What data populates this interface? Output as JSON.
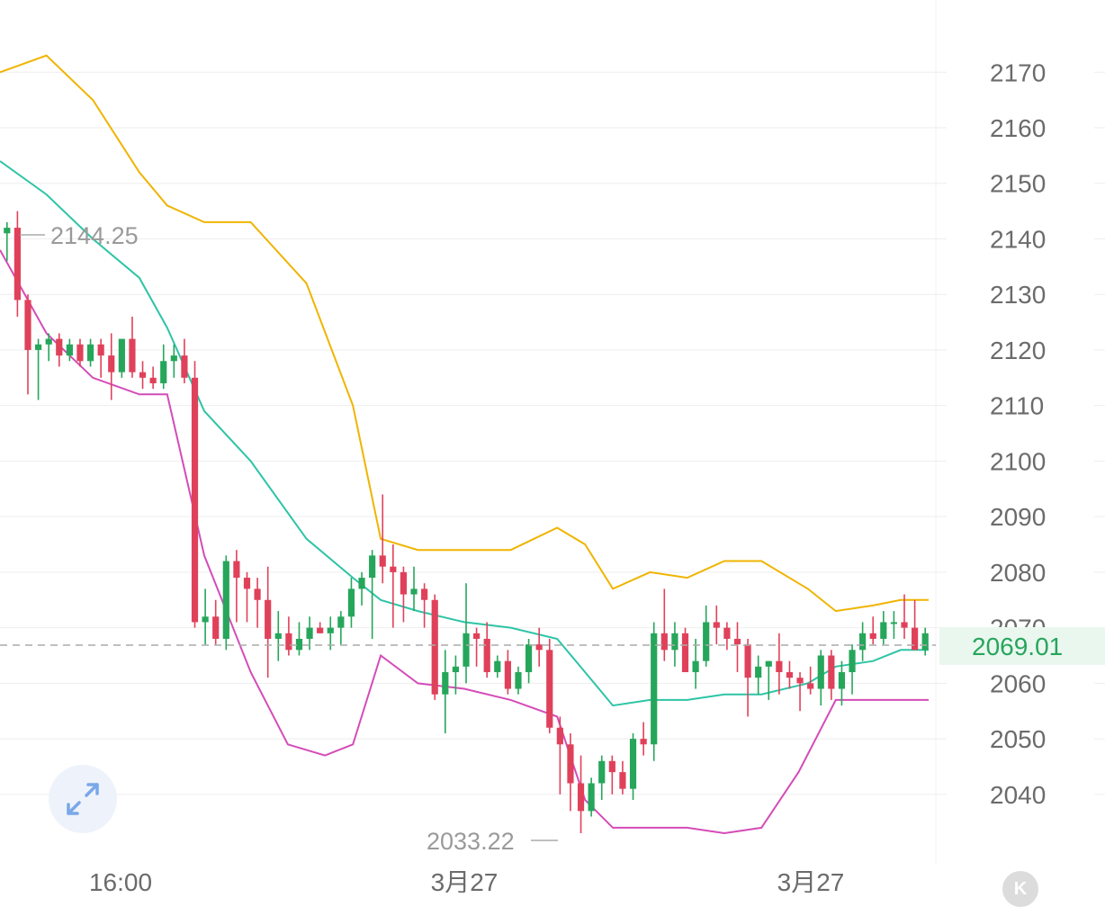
{
  "chart_data": {
    "type": "candlestick",
    "indicator": "bollinger",
    "colors": {
      "up": "#26a65b",
      "down": "#e0415a",
      "upper_band": "#f0b400",
      "middle_band": "#2ec4a6",
      "lower_band": "#d44cb8",
      "last_price": "#26a65b",
      "grid": "#eeeeee"
    },
    "y_ticks": [
      "2170",
      "2160",
      "2150",
      "2140",
      "2130",
      "2120",
      "2110",
      "2100",
      "2090",
      "2080",
      "2070",
      "2060",
      "2050",
      "2040"
    ],
    "x_ticks": [
      "16:00",
      "3月27",
      "3月27"
    ],
    "ylim": [
      2027.5,
      2183
    ],
    "last_price": "2069.01",
    "max_annotation": "2144.25",
    "min_annotation": "2033.22",
    "candles": [
      [
        2141,
        2143,
        2136,
        2142
      ],
      [
        2142,
        2145,
        2126,
        2129
      ],
      [
        2129,
        2130,
        2112,
        2120
      ],
      [
        2120,
        2122,
        2111,
        2121
      ],
      [
        2121,
        2123,
        2118,
        2122
      ],
      [
        2122,
        2123,
        2117,
        2119
      ],
      [
        2119,
        2122,
        2118,
        2121
      ],
      [
        2121,
        2122,
        2117,
        2118
      ],
      [
        2118,
        2122,
        2117,
        2121
      ],
      [
        2121,
        2122,
        2115,
        2119
      ],
      [
        2119,
        2123,
        2111,
        2116
      ],
      [
        2116,
        2122,
        2115,
        2122
      ],
      [
        2122,
        2126,
        2115,
        2116
      ],
      [
        2116,
        2118,
        2113,
        2115
      ],
      [
        2115,
        2117,
        2113,
        2114
      ],
      [
        2114,
        2121,
        2113,
        2118
      ],
      [
        2118,
        2121,
        2115,
        2119
      ],
      [
        2119,
        2122,
        2114,
        2115
      ],
      [
        2115,
        2118,
        2070,
        2071
      ],
      [
        2071,
        2077,
        2067,
        2072
      ],
      [
        2072,
        2075,
        2067,
        2068
      ],
      [
        2068,
        2083,
        2066,
        2082
      ],
      [
        2082,
        2084,
        2071,
        2079
      ],
      [
        2079,
        2080,
        2071,
        2077
      ],
      [
        2077,
        2079,
        2070,
        2075
      ],
      [
        2075,
        2081,
        2061,
        2068
      ],
      [
        2068,
        2073,
        2064,
        2069
      ],
      [
        2069,
        2072,
        2065,
        2066
      ],
      [
        2066,
        2071,
        2065,
        2068
      ],
      [
        2068,
        2072,
        2066,
        2070
      ],
      [
        2070,
        2071,
        2069,
        2069
      ],
      [
        2069,
        2072,
        2066,
        2070
      ],
      [
        2070,
        2073,
        2067,
        2072
      ],
      [
        2072,
        2079,
        2070,
        2077
      ],
      [
        2077,
        2080,
        2074,
        2079
      ],
      [
        2079,
        2084,
        2068,
        2083
      ],
      [
        2083,
        2094,
        2078,
        2081
      ],
      [
        2081,
        2085,
        2070,
        2080
      ],
      [
        2080,
        2081,
        2071,
        2076
      ],
      [
        2076,
        2081,
        2073,
        2077
      ],
      [
        2077,
        2078,
        2070,
        2075
      ],
      [
        2075,
        2076,
        2057,
        2058
      ],
      [
        2058,
        2066,
        2051,
        2062
      ],
      [
        2062,
        2065,
        2058,
        2063
      ],
      [
        2063,
        2078,
        2060,
        2069
      ],
      [
        2069,
        2070,
        2063,
        2068
      ],
      [
        2068,
        2071,
        2061,
        2062
      ],
      [
        2062,
        2065,
        2061,
        2064
      ],
      [
        2064,
        2066,
        2058,
        2059
      ],
      [
        2059,
        2063,
        2058,
        2062
      ],
      [
        2062,
        2068,
        2060,
        2067
      ],
      [
        2067,
        2070,
        2063,
        2066
      ],
      [
        2066,
        2068,
        2051,
        2052
      ],
      [
        2052,
        2054,
        2040,
        2049
      ],
      [
        2049,
        2051,
        2037,
        2042
      ],
      [
        2042,
        2047,
        2033,
        2037
      ],
      [
        2037,
        2043,
        2036,
        2042
      ],
      [
        2042,
        2047,
        2039,
        2046
      ],
      [
        2046,
        2047,
        2040,
        2044
      ],
      [
        2044,
        2046,
        2040,
        2041
      ],
      [
        2041,
        2051,
        2039,
        2050
      ],
      [
        2050,
        2053,
        2047,
        2049
      ],
      [
        2049,
        2071,
        2046,
        2069
      ],
      [
        2069,
        2077,
        2064,
        2066
      ],
      [
        2066,
        2071,
        2063,
        2069
      ],
      [
        2069,
        2070,
        2062,
        2062
      ],
      [
        2062,
        2068,
        2059,
        2064
      ],
      [
        2064,
        2074,
        2063,
        2071
      ],
      [
        2071,
        2074,
        2067,
        2070
      ],
      [
        2070,
        2071,
        2066,
        2068
      ],
      [
        2068,
        2071,
        2062,
        2067
      ],
      [
        2067,
        2068,
        2054,
        2061
      ],
      [
        2061,
        2065,
        2058,
        2063
      ],
      [
        2063,
        2064,
        2057,
        2064
      ],
      [
        2064,
        2069,
        2058,
        2062
      ],
      [
        2062,
        2064,
        2059,
        2061
      ],
      [
        2061,
        2062,
        2055,
        2060
      ],
      [
        2060,
        2063,
        2058,
        2059
      ],
      [
        2059,
        2066,
        2056,
        2065
      ],
      [
        2065,
        2066,
        2057,
        2059
      ],
      [
        2059,
        2064,
        2056,
        2062
      ],
      [
        2062,
        2067,
        2058,
        2066
      ],
      [
        2066,
        2071,
        2064,
        2069
      ],
      [
        2069,
        2072,
        2067,
        2068
      ],
      [
        2068,
        2073,
        2067,
        2071
      ],
      [
        2071,
        2073,
        2068,
        2071
      ],
      [
        2071,
        2076,
        2068,
        2070
      ],
      [
        2070,
        2075,
        2067,
        2066
      ],
      [
        2066,
        2070,
        2065,
        2069
      ]
    ],
    "upper_band": [
      [
        0,
        2170
      ],
      [
        0.05,
        2173
      ],
      [
        0.1,
        2165
      ],
      [
        0.15,
        2152
      ],
      [
        0.18,
        2146
      ],
      [
        0.22,
        2143
      ],
      [
        0.27,
        2143
      ],
      [
        0.33,
        2132
      ],
      [
        0.38,
        2110
      ],
      [
        0.41,
        2086
      ],
      [
        0.45,
        2084
      ],
      [
        0.5,
        2084
      ],
      [
        0.55,
        2084
      ],
      [
        0.6,
        2088
      ],
      [
        0.63,
        2085
      ],
      [
        0.66,
        2077
      ],
      [
        0.7,
        2080
      ],
      [
        0.74,
        2079
      ],
      [
        0.78,
        2082
      ],
      [
        0.82,
        2082
      ],
      [
        0.87,
        2077
      ],
      [
        0.9,
        2073
      ],
      [
        0.94,
        2074
      ],
      [
        0.97,
        2075
      ],
      [
        1,
        2075
      ]
    ],
    "middle_band": [
      [
        0,
        2154
      ],
      [
        0.05,
        2148
      ],
      [
        0.1,
        2140
      ],
      [
        0.15,
        2133
      ],
      [
        0.18,
        2124
      ],
      [
        0.22,
        2109
      ],
      [
        0.27,
        2100
      ],
      [
        0.33,
        2086
      ],
      [
        0.38,
        2079
      ],
      [
        0.41,
        2075
      ],
      [
        0.45,
        2073
      ],
      [
        0.5,
        2071
      ],
      [
        0.55,
        2070
      ],
      [
        0.6,
        2068
      ],
      [
        0.63,
        2062
      ],
      [
        0.66,
        2056
      ],
      [
        0.7,
        2057
      ],
      [
        0.74,
        2057
      ],
      [
        0.78,
        2058
      ],
      [
        0.82,
        2058
      ],
      [
        0.87,
        2060
      ],
      [
        0.9,
        2063
      ],
      [
        0.94,
        2064
      ],
      [
        0.97,
        2066
      ],
      [
        1,
        2066
      ]
    ],
    "lower_band": [
      [
        0,
        2138
      ],
      [
        0.05,
        2123
      ],
      [
        0.1,
        2115
      ],
      [
        0.15,
        2112
      ],
      [
        0.18,
        2112
      ],
      [
        0.22,
        2083
      ],
      [
        0.27,
        2062
      ],
      [
        0.31,
        2049
      ],
      [
        0.35,
        2047
      ],
      [
        0.38,
        2049
      ],
      [
        0.41,
        2065
      ],
      [
        0.45,
        2060
      ],
      [
        0.5,
        2059
      ],
      [
        0.55,
        2057
      ],
      [
        0.6,
        2054
      ],
      [
        0.63,
        2039
      ],
      [
        0.66,
        2034
      ],
      [
        0.7,
        2034
      ],
      [
        0.74,
        2034
      ],
      [
        0.78,
        2033
      ],
      [
        0.82,
        2034
      ],
      [
        0.86,
        2044
      ],
      [
        0.9,
        2057
      ],
      [
        0.94,
        2057
      ],
      [
        1,
        2057
      ]
    ]
  },
  "ui": {
    "expand_icon": "expand-arrows-icon",
    "k_badge": "K"
  }
}
